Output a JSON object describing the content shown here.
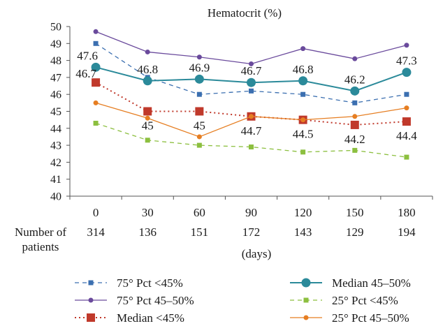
{
  "chart_data": {
    "type": "line",
    "title": "Hematocrit (%)",
    "xlabel": "(days)",
    "x": [
      0,
      30,
      60,
      90,
      120,
      150,
      180
    ],
    "ylim": [
      40,
      50
    ],
    "yticks": [
      40,
      41,
      42,
      43,
      44,
      45,
      46,
      47,
      48,
      49,
      50
    ],
    "grid": false,
    "legend_position": "bottom",
    "patients": {
      "label_line1": "Number of",
      "label_line2": "patients",
      "values": [
        "314",
        "136",
        "151",
        "172",
        "143",
        "129",
        "194"
      ]
    },
    "series": [
      {
        "name": "75° Pct <45%",
        "values": [
          49.0,
          47.0,
          46.0,
          46.2,
          46.0,
          45.5,
          46.0
        ],
        "color": "#3b6fb0",
        "dash": "6,5",
        "marker": "square",
        "stroke_weight": "thin"
      },
      {
        "name": "75° Pct 45–50%",
        "values": [
          49.7,
          48.5,
          48.2,
          47.8,
          48.7,
          48.1,
          48.9
        ],
        "color": "#6a4a9c",
        "dash": "",
        "marker": "circle",
        "stroke_weight": "thin"
      },
      {
        "name": "Median <45%",
        "values": [
          46.7,
          45.0,
          45.0,
          44.7,
          44.5,
          44.2,
          44.4
        ],
        "color": "#c0392b",
        "dash": "2,4",
        "marker": "square-large",
        "stroke_weight": "thick",
        "labels": [
          "46.7",
          "45",
          "45",
          "44.7",
          "44.5",
          "44.2",
          "44.4"
        ]
      },
      {
        "name": "Median 45–50%",
        "values": [
          47.6,
          46.8,
          46.9,
          46.7,
          46.8,
          46.2,
          47.3
        ],
        "color": "#2b8a9a",
        "dash": "",
        "marker": "circle-large",
        "stroke_weight": "thick",
        "labels": [
          "47.6",
          "46.8",
          "46.9",
          "46.7",
          "46.8",
          "46.2",
          "47.3"
        ]
      },
      {
        "name": "25° Pct <45%",
        "values": [
          44.3,
          43.3,
          43.0,
          42.9,
          42.6,
          42.7,
          42.3
        ],
        "color": "#8cbf3f",
        "dash": "6,5",
        "marker": "square",
        "stroke_weight": "thin"
      },
      {
        "name": "25° Pct 45–50%",
        "values": [
          45.5,
          44.6,
          43.5,
          44.7,
          44.5,
          44.7,
          45.2
        ],
        "color": "#e67e22",
        "dash": "",
        "marker": "circle",
        "stroke_weight": "thin"
      }
    ]
  }
}
